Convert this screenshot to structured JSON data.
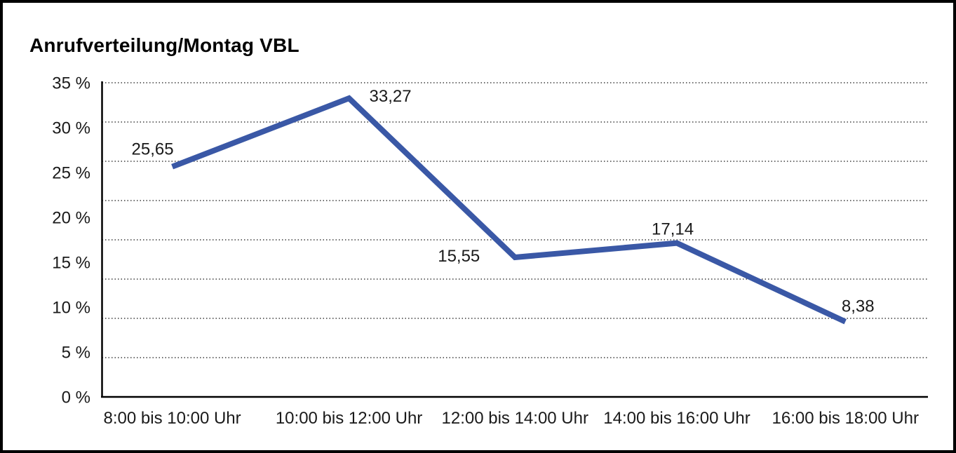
{
  "title": "Anrufverteilung/Montag VBL",
  "colors": {
    "line": "#3A58A6",
    "grid": "#3d3d3d",
    "axis": "#000000",
    "text": "#1a1a1a",
    "background": "#ffffff",
    "border": "#000000"
  },
  "chart_data": {
    "type": "line",
    "title": "Anrufverteilung/Montag VBL",
    "categories": [
      "8:00 bis 10:00 Uhr",
      "10:00 bis 12:00 Uhr",
      "12:00 bis 14:00 Uhr",
      "14:00 bis 16:00 Uhr",
      "16:00 bis 18:00 Uhr"
    ],
    "values": [
      25.65,
      33.27,
      15.55,
      17.14,
      8.38
    ],
    "value_labels": [
      "25,65",
      "33,27",
      "15,55",
      "17,14",
      "8,38"
    ],
    "xlabel": "",
    "ylabel": "",
    "ylim": [
      0,
      35
    ],
    "y_tick_step": 5,
    "y_tick_labels": [
      "35 %",
      "30 %",
      "25 %",
      "20 %",
      "15 %",
      "10 %",
      "5 %",
      "0 %"
    ],
    "grid": "horizontal-dotted",
    "grid_line_count": 9,
    "legend": "none",
    "line_color": "#3A58A6"
  }
}
